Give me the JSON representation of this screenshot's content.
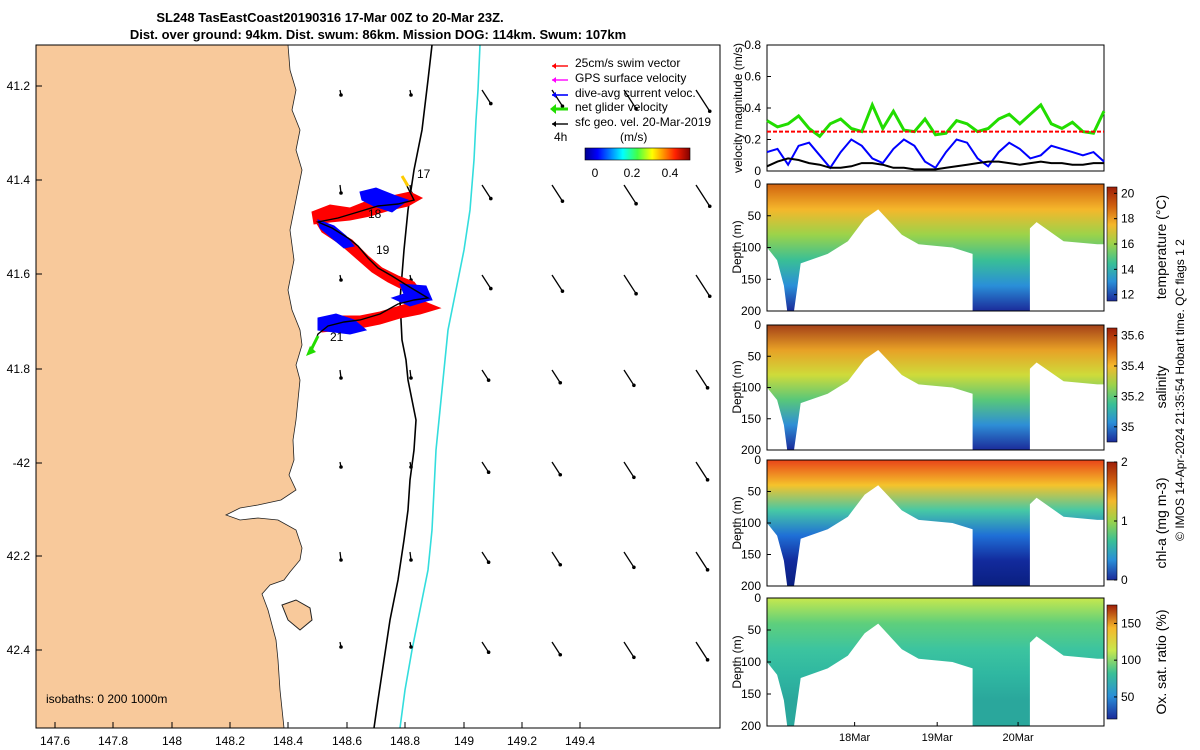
{
  "title": {
    "line1": "SL248 TasEastCoast20190316 17-Mar 00Z to 20-Mar 23Z.",
    "line2": "Dist. over ground: 94km. Dist. swum: 86km. Mission DOG: 114km. Swum: 107km"
  },
  "map": {
    "lon_ticks": [
      "147.6",
      "147.8",
      "148",
      "148.2",
      "148.4",
      "148.6",
      "148.8",
      "149",
      "149.2",
      "149.4"
    ],
    "lat_ticks": [
      "41.2",
      "41.4",
      "41.6",
      "41.8",
      "-42",
      "42.2",
      "42.4"
    ],
    "isobath_label": "isobaths: 0   200  1000m",
    "day_labels": [
      "17",
      "18",
      "19",
      "21"
    ],
    "legend": {
      "items": [
        {
          "label": "25cm/s swim vector",
          "color": "#ff0000"
        },
        {
          "label": "GPS surface velocity",
          "color": "#ff00ff"
        },
        {
          "label": "dive-avg current veloc.",
          "color": "#0000ff"
        },
        {
          "label": "net glider velocity",
          "color": "#00dd00"
        },
        {
          "label": "sfc geo. vel. 20-Mar-2019",
          "color": "#000000"
        }
      ],
      "interval_label": "4h",
      "colorbar_title": "(m/s)",
      "colorbar_ticks": [
        "0",
        "0.2",
        "0.4"
      ]
    },
    "colors": {
      "land": "#f8c99b",
      "isobath_200": "#000000",
      "isobath_1000": "#33dddd"
    }
  },
  "chart_data": [
    {
      "type": "line",
      "title": "",
      "ylabel": "velocity magnitude (m/s)",
      "ylim": [
        0,
        0.8
      ],
      "yticks": [
        "0",
        "0.2",
        "0.4",
        "0.6",
        "0.8"
      ],
      "x_hours": [
        0,
        3,
        6,
        9,
        12,
        15,
        18,
        21,
        24,
        27,
        30,
        33,
        36,
        39,
        42,
        45,
        48,
        51,
        54,
        57,
        60,
        63,
        66,
        69,
        72,
        75,
        78,
        81,
        84,
        87,
        90,
        93,
        96
      ],
      "series": [
        {
          "name": "net glider velocity",
          "color": "#22dd00",
          "values": [
            0.32,
            0.28,
            0.3,
            0.35,
            0.27,
            0.22,
            0.3,
            0.33,
            0.27,
            0.25,
            0.42,
            0.27,
            0.38,
            0.26,
            0.25,
            0.33,
            0.23,
            0.24,
            0.32,
            0.3,
            0.25,
            0.27,
            0.33,
            0.36,
            0.3,
            0.36,
            0.42,
            0.3,
            0.27,
            0.31,
            0.25,
            0.24,
            0.38
          ]
        },
        {
          "name": "25cm/s swim vector",
          "color": "#ff0000",
          "values": [
            0.25,
            0.25,
            0.25,
            0.25,
            0.25,
            0.25,
            0.25,
            0.25,
            0.25,
            0.25,
            0.25,
            0.25,
            0.25,
            0.25,
            0.25,
            0.25,
            0.25,
            0.25,
            0.25,
            0.25,
            0.25,
            0.25,
            0.25,
            0.25,
            0.25,
            0.25,
            0.25,
            0.25,
            0.25,
            0.25,
            0.25,
            0.25,
            0.25
          ]
        },
        {
          "name": "dive-avg current veloc.",
          "color": "#0000ff",
          "values": [
            0.12,
            0.14,
            0.04,
            0.16,
            0.18,
            0.1,
            0.02,
            0.12,
            0.2,
            0.16,
            0.08,
            0.05,
            0.14,
            0.2,
            0.16,
            0.06,
            0.02,
            0.12,
            0.2,
            0.18,
            0.08,
            0.03,
            0.12,
            0.18,
            0.14,
            0.08,
            0.1,
            0.16,
            0.14,
            0.12,
            0.1,
            0.12,
            0.06
          ]
        },
        {
          "name": "sfc geo. vel.",
          "color": "#000000",
          "values": [
            0.03,
            0.06,
            0.08,
            0.07,
            0.05,
            0.04,
            0.02,
            0.02,
            0.03,
            0.05,
            0.05,
            0.04,
            0.02,
            0.02,
            0.01,
            0.01,
            0.01,
            0.02,
            0.03,
            0.04,
            0.05,
            0.06,
            0.06,
            0.05,
            0.04,
            0.05,
            0.06,
            0.05,
            0.05,
            0.04,
            0.04,
            0.05,
            0.05
          ]
        }
      ]
    },
    {
      "type": "heatmap",
      "title": "",
      "ylabel": "Depth (m)",
      "clabel": "temperature (°C)",
      "ylim": [
        200,
        0
      ],
      "yticks": [
        "0",
        "50",
        "100",
        "150",
        "200"
      ],
      "clim": [
        11.5,
        20.5
      ],
      "cticks": [
        "12",
        "14",
        "16",
        "18",
        "20"
      ],
      "cticks_values": [
        12,
        14,
        16,
        18,
        20
      ]
    },
    {
      "type": "heatmap",
      "title": "",
      "ylabel": "Depth (m)",
      "clabel": "salinity",
      "ylim": [
        200,
        0
      ],
      "yticks": [
        "0",
        "50",
        "100",
        "150",
        "200"
      ],
      "clim": [
        34.9,
        35.65
      ],
      "cticks": [
        "35",
        "35.2",
        "35.4",
        "35.6"
      ],
      "cticks_values": [
        35,
        35.2,
        35.4,
        35.6
      ]
    },
    {
      "type": "heatmap",
      "title": "",
      "ylabel": "Depth (m)",
      "clabel": "chl-a (mg m-3)",
      "ylim": [
        200,
        0
      ],
      "yticks": [
        "0",
        "50",
        "100",
        "150",
        "200"
      ],
      "clim": [
        0,
        2
      ],
      "cticks": [
        "0",
        "1",
        "2"
      ],
      "cticks_values": [
        0,
        1,
        2
      ]
    },
    {
      "type": "heatmap",
      "title": "",
      "ylabel": "Depth (m)",
      "clabel": "Ox. sat. ratio (%)",
      "ylim": [
        200,
        0
      ],
      "yticks": [
        "0",
        "50",
        "100",
        "150",
        "200"
      ],
      "clim": [
        20,
        175
      ],
      "cticks": [
        "50",
        "100",
        "150"
      ],
      "cticks_values": [
        50,
        100,
        150
      ],
      "xticks": [
        "18Mar",
        "19Mar",
        "20Mar"
      ]
    }
  ],
  "credit": "© IMOS 14-Apr-2024 21:35:54 Hobart time. QC flags 1  2"
}
